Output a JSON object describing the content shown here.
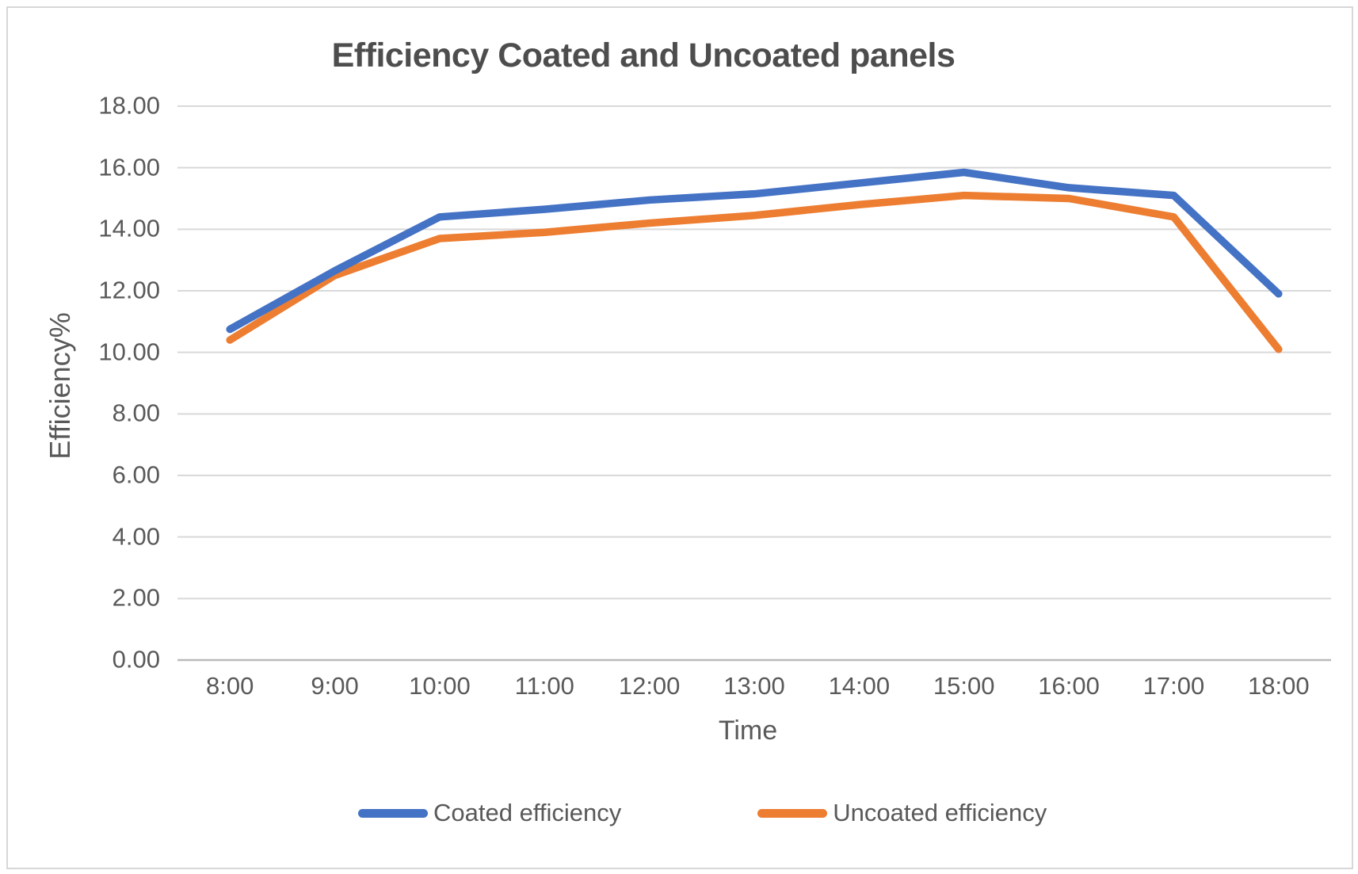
{
  "chart_data": {
    "type": "line",
    "title": "Efficiency Coated and Uncoated panels",
    "xlabel": "Time",
    "ylabel": "Efficiency%",
    "categories": [
      "8:00",
      "9:00",
      "10:00",
      "11:00",
      "12:00",
      "13:00",
      "14:00",
      "15:00",
      "16:00",
      "17:00",
      "18:00"
    ],
    "series": [
      {
        "name": "Coated efficiency",
        "color": "#4472C4",
        "values": [
          10.75,
          12.65,
          14.4,
          14.65,
          14.95,
          15.15,
          15.5,
          15.85,
          15.35,
          15.1,
          11.9
        ]
      },
      {
        "name": "Uncoated efficiency",
        "color": "#ED7D31",
        "values": [
          10.4,
          12.5,
          13.7,
          13.9,
          14.2,
          14.45,
          14.8,
          15.1,
          15.0,
          14.4,
          10.1
        ]
      }
    ],
    "ylim": [
      0,
      18
    ],
    "ytick_labels": [
      "18.00",
      "16.00",
      "14.00",
      "12.00",
      "10.00",
      "8.00",
      "6.00",
      "4.00",
      "2.00",
      "0.00"
    ],
    "grid": true,
    "legend_position": "bottom",
    "palette": {
      "grid": "#d9d9d9",
      "axis_line": "#b9b9b9",
      "tick_text": "#595959",
      "title_text": "#4d4d4d",
      "background": "#ffffff"
    }
  }
}
